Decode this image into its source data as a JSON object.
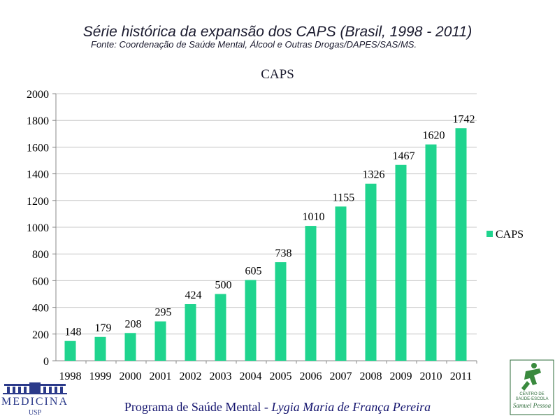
{
  "header": {
    "title": "Série histórica da expansão dos CAPS (Brasil, 1998  -  2011)",
    "subtitle": "Fonte: Coordenação de Saúde Mental, Álcool e Outras Drogas/DAPES/SAS/MS."
  },
  "chart_data": {
    "type": "bar",
    "title": "CAPS",
    "categories": [
      "1998",
      "1999",
      "2000",
      "2001",
      "2002",
      "2003",
      "2004",
      "2005",
      "2006",
      "2007",
      "2008",
      "2009",
      "2010",
      "2011"
    ],
    "series": [
      {
        "name": "CAPS",
        "values": [
          148,
          179,
          208,
          295,
          424,
          500,
          605,
          738,
          1010,
          1155,
          1326,
          1467,
          1620,
          1742
        ],
        "color": "#1fd48e"
      }
    ],
    "yticks": [
      "0",
      "200",
      "400",
      "600",
      "800",
      "1000",
      "1200",
      "1400",
      "1600",
      "1800",
      "2000"
    ],
    "ylim": [
      0,
      2000
    ],
    "xlabel": "",
    "ylabel": "",
    "grid": true,
    "legend": "right"
  },
  "footer": {
    "program": "Programa de Saúde Mental  -  ",
    "author": "Lygia Maria de França Pereira"
  },
  "logos": {
    "left": {
      "text": "MEDICINA",
      "sub": "USP"
    },
    "right": {
      "line1": "CENTRO DE",
      "line2": "SAÚDE-ESCOLA",
      "line3": "Samuel Pessoa"
    }
  },
  "colors": {
    "bar": "#1fd48e",
    "grid": "#c8c8c8",
    "footer": "#14146e"
  }
}
